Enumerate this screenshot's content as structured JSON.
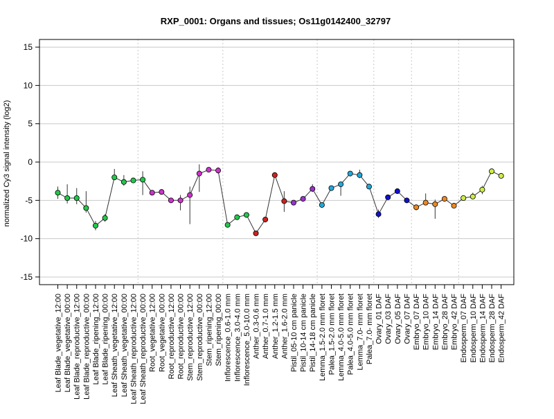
{
  "chart_data": {
    "type": "line",
    "title": "RXP_0001: Organs and tissues; Os11g0142400_32797",
    "xlabel": "",
    "ylabel": "normalized Cy3 signal intensity (log2)",
    "ylim": [
      -16,
      16
    ],
    "yticks": [
      -15,
      -10,
      -5,
      0,
      5,
      10,
      15
    ],
    "grid": true,
    "legend": "none",
    "categories": [
      "Leaf Blade_vegetative_12:00",
      "Leaf Blade_vegetative_00:00",
      "Leaf Blade_reproductive_12:00",
      "Leaf Blade_reproductive_00:00",
      "Leaf Blade_ripening_12:00",
      "Leaf Blade_ripening_00:00",
      "Leaf Sheath_vegetative_12:00",
      "Leaf Sheath_vegetative_00:00",
      "Leaf Sheath_reproductive_12:00",
      "Leaf Sheath_reproductive_00:00",
      "Root_vegetative_12:00",
      "Root_vegetative_00:00",
      "Root_reproductive_12:00",
      "Root_reproductive_00:00",
      "Stem_reproductive_12:00",
      "Stem_reproductive_00:00",
      "Stem_ripening_12:00",
      "Stem_ripening_00:00",
      "Inflorescence_0.6-1.0 mm",
      "Inflorescence_3.0-4.0 mm",
      "Inflorescence_5.0-10.0 mm",
      "Anther_0.3-0.6 mm",
      "Anther_0.7-1.0 mm",
      "Anther_1.2-1.5 mm",
      "Anther_1.6-2.0 mm",
      "Pistil_05-10 cm panicle",
      "Pistil_10-14 cm panicle",
      "Pistil_14-18 cm panicle",
      "Lemma_1.5-2.0 mm floret",
      "Palea_1.5-2.0 mm floret",
      "Lemma_4.0-5.0 mm floret",
      "Palea_4.0-5.0 mm floret",
      "Lemma_7.0- mm floret",
      "Palea_7.0- mm floret",
      "Ovary_01 DAF",
      "Ovary_03 DAF",
      "Ovary_05 DAF",
      "Ovary_07 DAF",
      "Embryo_07 DAF",
      "Embryo_10 DAF",
      "Embryo_14 DAF",
      "Embryo_28 DAF",
      "Embryo_42 DAF",
      "Endosperm_07 DAF",
      "Endosperm_10 DAF",
      "Endosperm_14 DAF",
      "Endosperm_28 DAF",
      "Endosperm_42 DAF"
    ],
    "series": [
      {
        "values": [
          -4.0,
          -4.7,
          -4.7,
          -6.0,
          -8.3,
          -7.3,
          -2.0,
          -2.6,
          -2.4,
          -2.3,
          -4.0,
          -3.9,
          -5.0,
          -5.0,
          -4.3,
          -1.5,
          -1.0,
          -1.1,
          -8.2,
          -7.2,
          -6.9,
          -9.3,
          -7.5,
          -1.7,
          -5.1,
          -5.3,
          -4.8,
          -3.5,
          -5.6,
          -3.4,
          -2.9,
          -1.5,
          -1.7,
          -3.2,
          -6.8,
          -4.6,
          -3.8,
          -5.0,
          -5.9,
          -5.3,
          -5.5,
          -4.8,
          -5.7,
          -4.7,
          -4.5,
          -3.6,
          -1.2,
          -1.8
        ],
        "error_low": [
          -4.8,
          -5.4,
          -5.5,
          -6.6,
          -8.9,
          -7.8,
          -2.2,
          -3.1,
          -2.6,
          -4.3,
          -4.2,
          -4.1,
          -5.3,
          -6.3,
          -8.1,
          -3.9,
          -1.1,
          -1.5,
          -8.4,
          -7.4,
          -7.1,
          -9.5,
          -7.7,
          -1.9,
          -6.5,
          -5.5,
          -5.0,
          -3.9,
          -5.9,
          -3.6,
          -4.4,
          -1.7,
          -2.1,
          -3.4,
          -7.3,
          -4.8,
          -4.0,
          -5.2,
          -6.3,
          -5.6,
          -7.4,
          -5.0,
          -5.9,
          -4.9,
          -4.8,
          -4.2,
          -1.4,
          -2.0
        ],
        "error_high": [
          -3.2,
          -2.9,
          -3.4,
          -3.8,
          -7.7,
          -6.8,
          -0.9,
          -1.7,
          -2.1,
          -1.2,
          -3.8,
          -3.7,
          -4.7,
          -4.3,
          -3.2,
          -0.3,
          -0.8,
          -0.7,
          -8.0,
          -7.0,
          -6.7,
          -9.1,
          -7.3,
          -1.5,
          -3.8,
          -5.1,
          -4.6,
          -2.9,
          -5.3,
          -3.2,
          -2.7,
          -1.3,
          -1.0,
          -3.0,
          -6.2,
          -4.4,
          -3.6,
          -4.8,
          -5.6,
          -4.1,
          -4.9,
          -4.6,
          -5.5,
          -4.5,
          -4.0,
          -3.1,
          -1.0,
          -1.6
        ]
      }
    ],
    "colors": [
      "#22c84a",
      "#22c84a",
      "#22c84a",
      "#22c84a",
      "#22c84a",
      "#22c84a",
      "#22c84a",
      "#22c84a",
      "#22c84a",
      "#22c84a",
      "#cc33cc",
      "#cc33cc",
      "#cc33cc",
      "#cc33cc",
      "#cc33cc",
      "#cc33cc",
      "#cc33cc",
      "#cc33cc",
      "#22c84a",
      "#22c84a",
      "#22c84a",
      "#cc2222",
      "#cc2222",
      "#cc2222",
      "#cc2222",
      "#9933cc",
      "#9933cc",
      "#9933cc",
      "#22a7d8",
      "#22a7d8",
      "#22a7d8",
      "#22a7d8",
      "#22a7d8",
      "#22a7d8",
      "#1111cc",
      "#1111cc",
      "#1111cc",
      "#1111cc",
      "#ee8822",
      "#ee8822",
      "#ee8822",
      "#ee8822",
      "#ee8822",
      "#ccee44",
      "#ccee44",
      "#ccee44",
      "#ccee44",
      "#ccee44"
    ]
  }
}
